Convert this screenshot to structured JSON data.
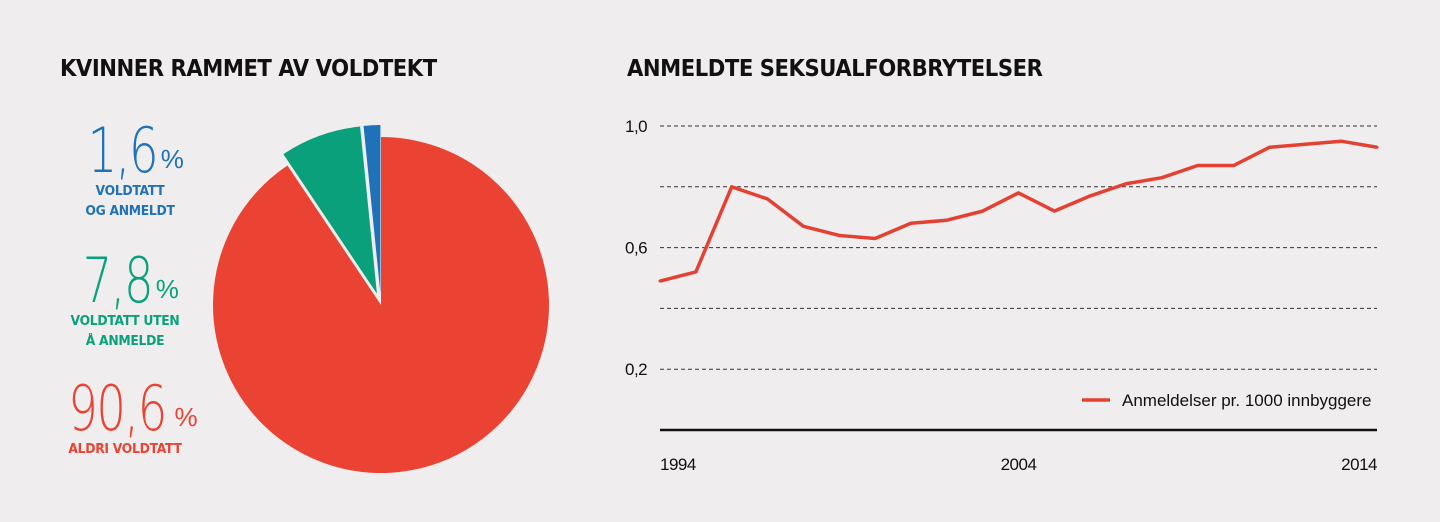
{
  "pie": {
    "title": "KVINNER RAMMET AV VOLDTEKT",
    "stats": [
      {
        "num": "1,6",
        "pct": "%",
        "line1": "VOLDTATT",
        "line2": "OG ANMELDT",
        "color": "#1f72b8"
      },
      {
        "num": "7,8",
        "pct": "%",
        "line1": "VOLDTATT UTEN",
        "line2": "Å ANMELDE",
        "color": "#0aa07c"
      },
      {
        "num": "90,6",
        "pct": "%",
        "line1": "ALDRI VOLDTATT",
        "line2": "",
        "color": "#ea4333"
      }
    ]
  },
  "line": {
    "title": "ANMELDTE SEKSUALFORBRYTELSER"
  },
  "chart_data": [
    {
      "type": "pie",
      "title": "KVINNER RAMMET AV VOLDTEKT",
      "slices": [
        {
          "label": "VOLDTATT OG ANMELDT",
          "value": 1.6,
          "color": "#1f72b8"
        },
        {
          "label": "VOLDTATT UTEN Å ANMELDE",
          "value": 7.8,
          "color": "#0aa07c"
        },
        {
          "label": "ALDRI VOLDTATT",
          "value": 90.6,
          "color": "#ea4333"
        }
      ],
      "exploded": [
        "VOLDTATT OG ANMELDT",
        "VOLDTATT UTEN Å ANMELDE"
      ]
    },
    {
      "type": "line",
      "title": "ANMELDTE SEKSUALFORBRYTELSER",
      "x": [
        1994,
        1995,
        1996,
        1997,
        1998,
        1999,
        2000,
        2001,
        2002,
        2003,
        2004,
        2005,
        2006,
        2007,
        2008,
        2009,
        2010,
        2011,
        2012,
        2013,
        2014
      ],
      "series": [
        {
          "name": "Anmeldelser pr. 1000 innbyggere",
          "color": "#e34233",
          "values": [
            0.49,
            0.52,
            0.8,
            0.76,
            0.67,
            0.64,
            0.63,
            0.68,
            0.69,
            0.72,
            0.78,
            0.72,
            0.77,
            0.81,
            0.83,
            0.87,
            0.87,
            0.93,
            0.94,
            0.95,
            0.93
          ]
        }
      ],
      "x_ticks": [
        "1994",
        "2004",
        "2014"
      ],
      "y_ticks": [
        "0,2",
        "0,6",
        "1,0"
      ],
      "ylim": [
        0,
        1.0
      ],
      "xlim": [
        1994,
        2014
      ],
      "grid": "horizontal dashed",
      "legend_position": "bottom-right"
    }
  ]
}
